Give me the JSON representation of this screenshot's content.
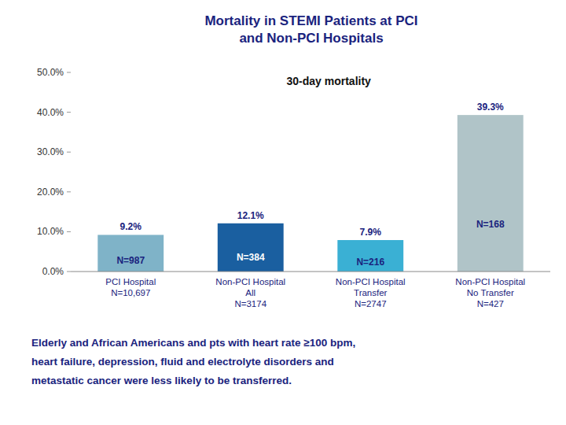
{
  "chart_data": {
    "type": "bar",
    "title": "Mortality in STEMI Patients at PCI\nand Non-PCI Hospitals",
    "subtitle": "30-day mortality",
    "categories": [
      "PCI Hospital\nN=10,697",
      "Non-PCI Hospital\nAll\nN=3174",
      "Non-PCI Hospital\nTransfer\nN=2747",
      "Non-PCI Hospital\nNo Transfer\nN=427"
    ],
    "values": [
      9.2,
      12.1,
      7.9,
      39.3
    ],
    "value_labels": [
      "9.2%",
      "12.1%",
      "7.9%",
      "39.3%"
    ],
    "data_labels": true,
    "count_labels": [
      "N=987",
      "N=384",
      "N=216",
      "N=168"
    ],
    "colors": [
      "#7fb3c8",
      "#1a5fa0",
      "#3ab0d4",
      "#b0c4c8"
    ],
    "ylim": [
      0,
      50
    ],
    "yticks": [
      {
        "value": 0,
        "label": "0.0%"
      },
      {
        "value": 10,
        "label": "10.0%"
      },
      {
        "value": 20,
        "label": "20.0%"
      },
      {
        "value": 30,
        "label": "30.0%"
      },
      {
        "value": 40,
        "label": "40.0%"
      },
      {
        "value": 50,
        "label": "50.0%"
      }
    ],
    "grid": false,
    "annotations": [
      "Elderly and African Americans and pts with heart rate ≥100 bpm,",
      "heart failure, depression, fluid and electrolyte disorders and",
      "metastatic cancer were less likely to be transferred."
    ]
  }
}
